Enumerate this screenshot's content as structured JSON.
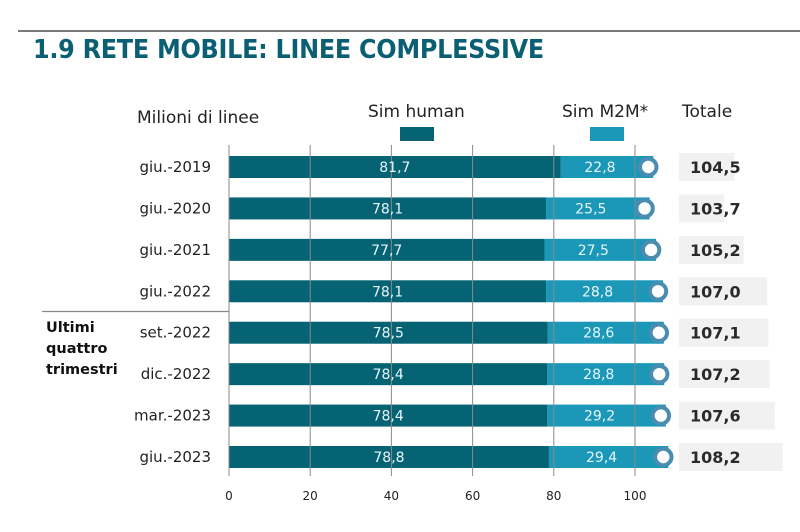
{
  "title": "1.9 RETE MOBILE: LINEE COMPLESSIVE",
  "colors": {
    "title": "#0b5f73",
    "sim_human": "#066373",
    "sim_m2m": "#1b97b8",
    "end_cap_ring": "#4a8db0",
    "total_box": "#f1f1f1",
    "gridline": "#8a8a8a"
  },
  "legend": {
    "unit_label": "Milioni di linee",
    "sim_human": "Sim human",
    "sim_m2m": "Sim M2M*",
    "totale": "Totale"
  },
  "group_label": [
    "Ultimi",
    "quattro",
    "trimestri"
  ],
  "chart_data": {
    "type": "bar",
    "orientation": "horizontal",
    "stacked": true,
    "title": "1.9 RETE MOBILE: LINEE COMPLESSIVE",
    "ylabel": "Milioni di linee",
    "xlabel": "",
    "categories": [
      "giu.-2019",
      "giu.-2020",
      "giu.-2021",
      "giu.-2022",
      "set.-2022",
      "dic.-2022",
      "mar.-2023",
      "giu.-2023"
    ],
    "series": [
      {
        "name": "Sim human",
        "values": [
          81.7,
          78.1,
          77.7,
          78.1,
          78.5,
          78.4,
          78.4,
          78.8
        ],
        "labels": [
          "81,7",
          "78,1",
          "77,7",
          "78,1",
          "78,5",
          "78,4",
          "78,4",
          "78,8"
        ]
      },
      {
        "name": "Sim M2M*",
        "values": [
          22.8,
          25.5,
          27.5,
          28.8,
          28.6,
          28.8,
          29.2,
          29.4
        ],
        "labels": [
          "22,8",
          "25,5",
          "27,5",
          "28,8",
          "28,6",
          "28,8",
          "29,2",
          "29,4"
        ]
      }
    ],
    "totals": {
      "name": "Totale",
      "values": [
        104.5,
        103.7,
        105.2,
        107.0,
        107.1,
        107.2,
        107.6,
        108.2
      ],
      "labels": [
        "104,5",
        "103,7",
        "105,2",
        "107,0",
        "107,1",
        "107,2",
        "107,6",
        "108,2"
      ]
    },
    "xlim": [
      0,
      100
    ],
    "xticks": [
      0,
      20,
      40,
      60,
      80,
      100
    ],
    "grid": true,
    "legend_position": "top",
    "group_annotation": {
      "text": "Ultimi quattro trimestri",
      "applies_to": [
        "set.-2022",
        "dic.-2022",
        "mar.-2023",
        "giu.-2023"
      ]
    }
  }
}
